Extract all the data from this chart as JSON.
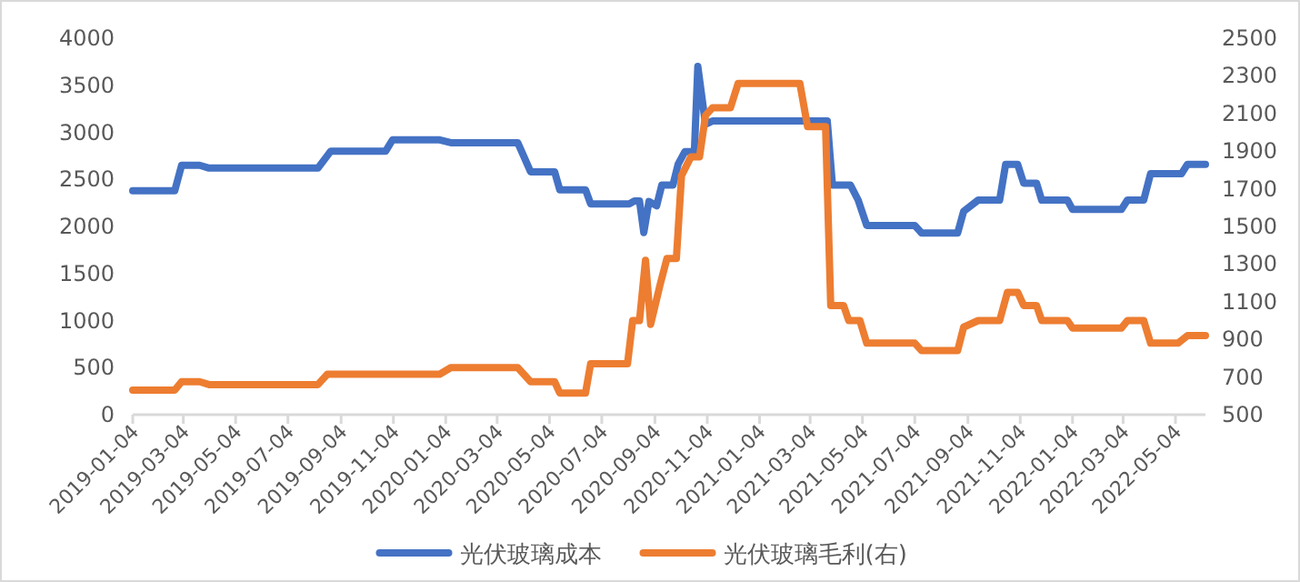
{
  "chart_data": {
    "type": "line",
    "xlim": [
      "2019-01-04",
      "2022-06-08"
    ],
    "xticks": [
      "2019-01-04",
      "2019-03-04",
      "2019-05-04",
      "2019-07-04",
      "2019-09-04",
      "2019-11-04",
      "2020-01-04",
      "2020-03-04",
      "2020-05-04",
      "2020-07-04",
      "2020-09-04",
      "2020-11-04",
      "2021-01-04",
      "2021-03-04",
      "2021-05-04",
      "2021-07-04",
      "2021-09-04",
      "2021-11-04",
      "2022-01-04",
      "2022-03-04",
      "2022-05-04"
    ],
    "ylim": [
      0,
      4000
    ],
    "yticks": [
      0,
      500,
      1000,
      1500,
      2000,
      2500,
      3000,
      3500,
      4000
    ],
    "y2lim": [
      500,
      2500
    ],
    "y2ticks": [
      500,
      700,
      900,
      1100,
      1300,
      1500,
      1700,
      1900,
      2100,
      2300,
      2500
    ],
    "grid": false,
    "legend": "bottom",
    "marker": "none",
    "line_style": "solid",
    "series": [
      {
        "name": "光伏玻璃成本",
        "color": "#4472c4",
        "x": [
          "2019-01-04",
          "2019-02-22",
          "2019-03-02",
          "2019-03-23",
          "2019-04-03",
          "2019-08-08",
          "2019-08-23",
          "2019-10-26",
          "2019-11-03",
          "2019-12-28",
          "2020-01-10",
          "2020-03-28",
          "2020-04-12",
          "2020-05-10",
          "2020-05-16",
          "2020-06-15",
          "2020-06-21",
          "2020-08-05",
          "2020-08-11",
          "2020-08-17",
          "2020-08-22",
          "2020-08-28",
          "2020-09-06",
          "2020-09-12",
          "2020-09-25",
          "2020-10-01",
          "2020-10-09",
          "2020-10-20",
          "2020-10-24",
          "2020-11-02",
          "2020-11-10",
          "2021-03-24",
          "2021-03-30",
          "2021-04-20",
          "2021-04-29",
          "2021-05-09",
          "2021-07-04",
          "2021-07-12",
          "2021-08-23",
          "2021-08-30",
          "2021-09-16",
          "2021-10-11",
          "2021-10-18",
          "2021-11-01",
          "2021-11-08",
          "2021-11-23",
          "2021-11-29",
          "2021-12-29",
          "2022-01-04",
          "2022-03-02",
          "2022-03-09",
          "2022-03-28",
          "2022-04-05",
          "2022-05-11",
          "2022-05-18",
          "2022-06-08"
        ],
        "values": [
          2380,
          2380,
          2650,
          2650,
          2620,
          2620,
          2800,
          2800,
          2920,
          2920,
          2890,
          2890,
          2580,
          2580,
          2390,
          2390,
          2240,
          2240,
          2270,
          2270,
          1935,
          2265,
          2220,
          2440,
          2440,
          2660,
          2795,
          2795,
          3700,
          3085,
          3120,
          3120,
          2440,
          2440,
          2280,
          2010,
          2010,
          1930,
          1930,
          2160,
          2280,
          2280,
          2660,
          2660,
          2460,
          2460,
          2280,
          2280,
          2180,
          2180,
          2280,
          2280,
          2560,
          2560,
          2660,
          2660
        ]
      },
      {
        "name": "光伏玻璃毛利(右)",
        "color": "#ed7d31",
        "axis": "y2",
        "x": [
          "2019-01-04",
          "2019-02-22",
          "2019-03-02",
          "2019-03-23",
          "2019-04-03",
          "2019-08-08",
          "2019-08-19",
          "2019-12-28",
          "2020-01-10",
          "2020-03-28",
          "2020-04-12",
          "2020-05-10",
          "2020-05-16",
          "2020-06-15",
          "2020-06-21",
          "2020-08-03",
          "2020-08-09",
          "2020-08-17",
          "2020-08-24",
          "2020-08-30",
          "2020-09-10",
          "2020-09-18",
          "2020-09-29",
          "2020-10-05",
          "2020-10-16",
          "2020-10-26",
          "2020-11-02",
          "2020-11-10",
          "2020-12-01",
          "2020-12-10",
          "2021-02-20",
          "2021-03-01",
          "2021-03-22",
          "2021-03-28",
          "2021-04-12",
          "2021-04-18",
          "2021-05-01",
          "2021-05-09",
          "2021-07-04",
          "2021-07-12",
          "2021-08-23",
          "2021-08-30",
          "2021-09-16",
          "2021-10-11",
          "2021-10-20",
          "2021-11-01",
          "2021-11-08",
          "2021-11-23",
          "2021-11-29",
          "2021-12-29",
          "2022-01-04",
          "2022-03-02",
          "2022-03-09",
          "2022-03-28",
          "2022-04-05",
          "2022-05-07",
          "2022-05-18",
          "2022-06-08"
        ],
        "values": [
          630,
          630,
          675,
          675,
          660,
          660,
          715,
          715,
          750,
          750,
          675,
          675,
          615,
          615,
          770,
          770,
          1000,
          1000,
          1320,
          980,
          1190,
          1330,
          1330,
          1770,
          1870,
          1870,
          2090,
          2130,
          2130,
          2260,
          2260,
          2030,
          2030,
          1080,
          1080,
          1000,
          1000,
          880,
          880,
          840,
          840,
          965,
          1000,
          1000,
          1150,
          1150,
          1080,
          1080,
          1000,
          1000,
          960,
          960,
          1000,
          1000,
          880,
          880,
          920,
          920
        ]
      }
    ]
  }
}
